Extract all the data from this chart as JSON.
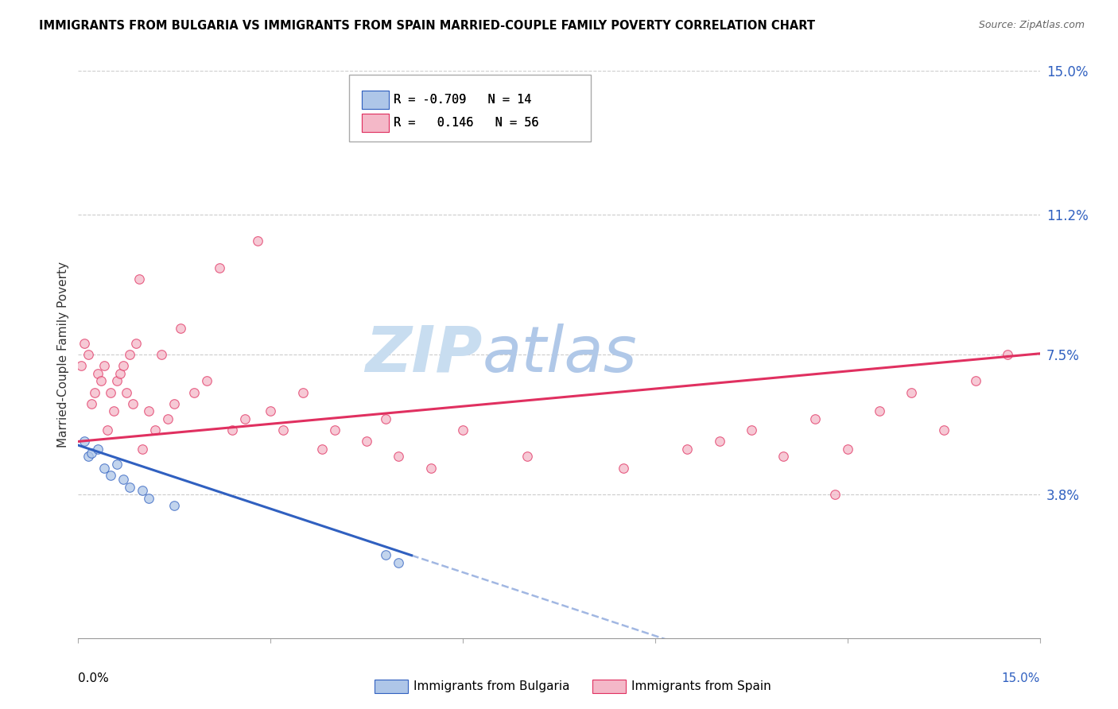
{
  "title": "IMMIGRANTS FROM BULGARIA VS IMMIGRANTS FROM SPAIN MARRIED-COUPLE FAMILY POVERTY CORRELATION CHART",
  "source": "Source: ZipAtlas.com",
  "ylabel": "Married-Couple Family Poverty",
  "right_yticks": [
    3.8,
    7.5,
    11.2,
    15.0
  ],
  "right_ytick_labels": [
    "3.8%",
    "7.5%",
    "11.2%",
    "15.0%"
  ],
  "xlim": [
    0.0,
    15.0
  ],
  "ylim": [
    0.0,
    15.0
  ],
  "legend_r_bulgaria": "-0.709",
  "legend_n_bulgaria": "14",
  "legend_r_spain": "0.146",
  "legend_n_spain": "56",
  "legend_label_bulgaria": "Immigrants from Bulgaria",
  "legend_label_spain": "Immigrants from Spain",
  "color_bulgaria": "#aec6e8",
  "color_spain": "#f4b8c8",
  "line_color_bulgaria": "#3060c0",
  "line_color_spain": "#e03060",
  "watermark_zip": "ZIP",
  "watermark_atlas": "atlas",
  "watermark_color_zip": "#c8ddf0",
  "watermark_color_atlas": "#b0c8e8",
  "grid_color": "#cccccc",
  "grid_style": "--",
  "bulgaria_x": [
    0.1,
    0.15,
    0.2,
    0.3,
    0.4,
    0.5,
    0.6,
    0.7,
    0.8,
    1.0,
    1.1,
    1.5,
    4.8,
    5.0
  ],
  "bulgaria_y": [
    5.2,
    4.8,
    4.9,
    5.0,
    4.5,
    4.3,
    4.6,
    4.2,
    4.0,
    3.9,
    3.7,
    3.5,
    2.2,
    2.0
  ],
  "spain_x": [
    0.05,
    0.1,
    0.15,
    0.2,
    0.25,
    0.3,
    0.35,
    0.4,
    0.45,
    0.5,
    0.55,
    0.6,
    0.65,
    0.7,
    0.75,
    0.8,
    0.85,
    0.9,
    0.95,
    1.0,
    1.1,
    1.2,
    1.3,
    1.4,
    1.5,
    1.6,
    1.8,
    2.0,
    2.2,
    2.4,
    2.6,
    2.8,
    3.0,
    3.2,
    3.5,
    3.8,
    4.0,
    4.5,
    4.8,
    5.0,
    5.5,
    6.0,
    7.0,
    8.5,
    9.5,
    10.0,
    10.5,
    11.0,
    11.5,
    11.8,
    12.0,
    12.5,
    13.0,
    13.5,
    14.0,
    14.5
  ],
  "spain_y": [
    7.2,
    7.8,
    7.5,
    6.2,
    6.5,
    7.0,
    6.8,
    7.2,
    5.5,
    6.5,
    6.0,
    6.8,
    7.0,
    7.2,
    6.5,
    7.5,
    6.2,
    7.8,
    9.5,
    5.0,
    6.0,
    5.5,
    7.5,
    5.8,
    6.2,
    8.2,
    6.5,
    6.8,
    9.8,
    5.5,
    5.8,
    10.5,
    6.0,
    5.5,
    6.5,
    5.0,
    5.5,
    5.2,
    5.8,
    4.8,
    4.5,
    5.5,
    4.8,
    4.5,
    5.0,
    5.2,
    5.5,
    4.8,
    5.8,
    3.8,
    5.0,
    6.0,
    6.5,
    5.5,
    6.8,
    7.5
  ],
  "marker_size": 70,
  "marker_alpha": 0.75
}
